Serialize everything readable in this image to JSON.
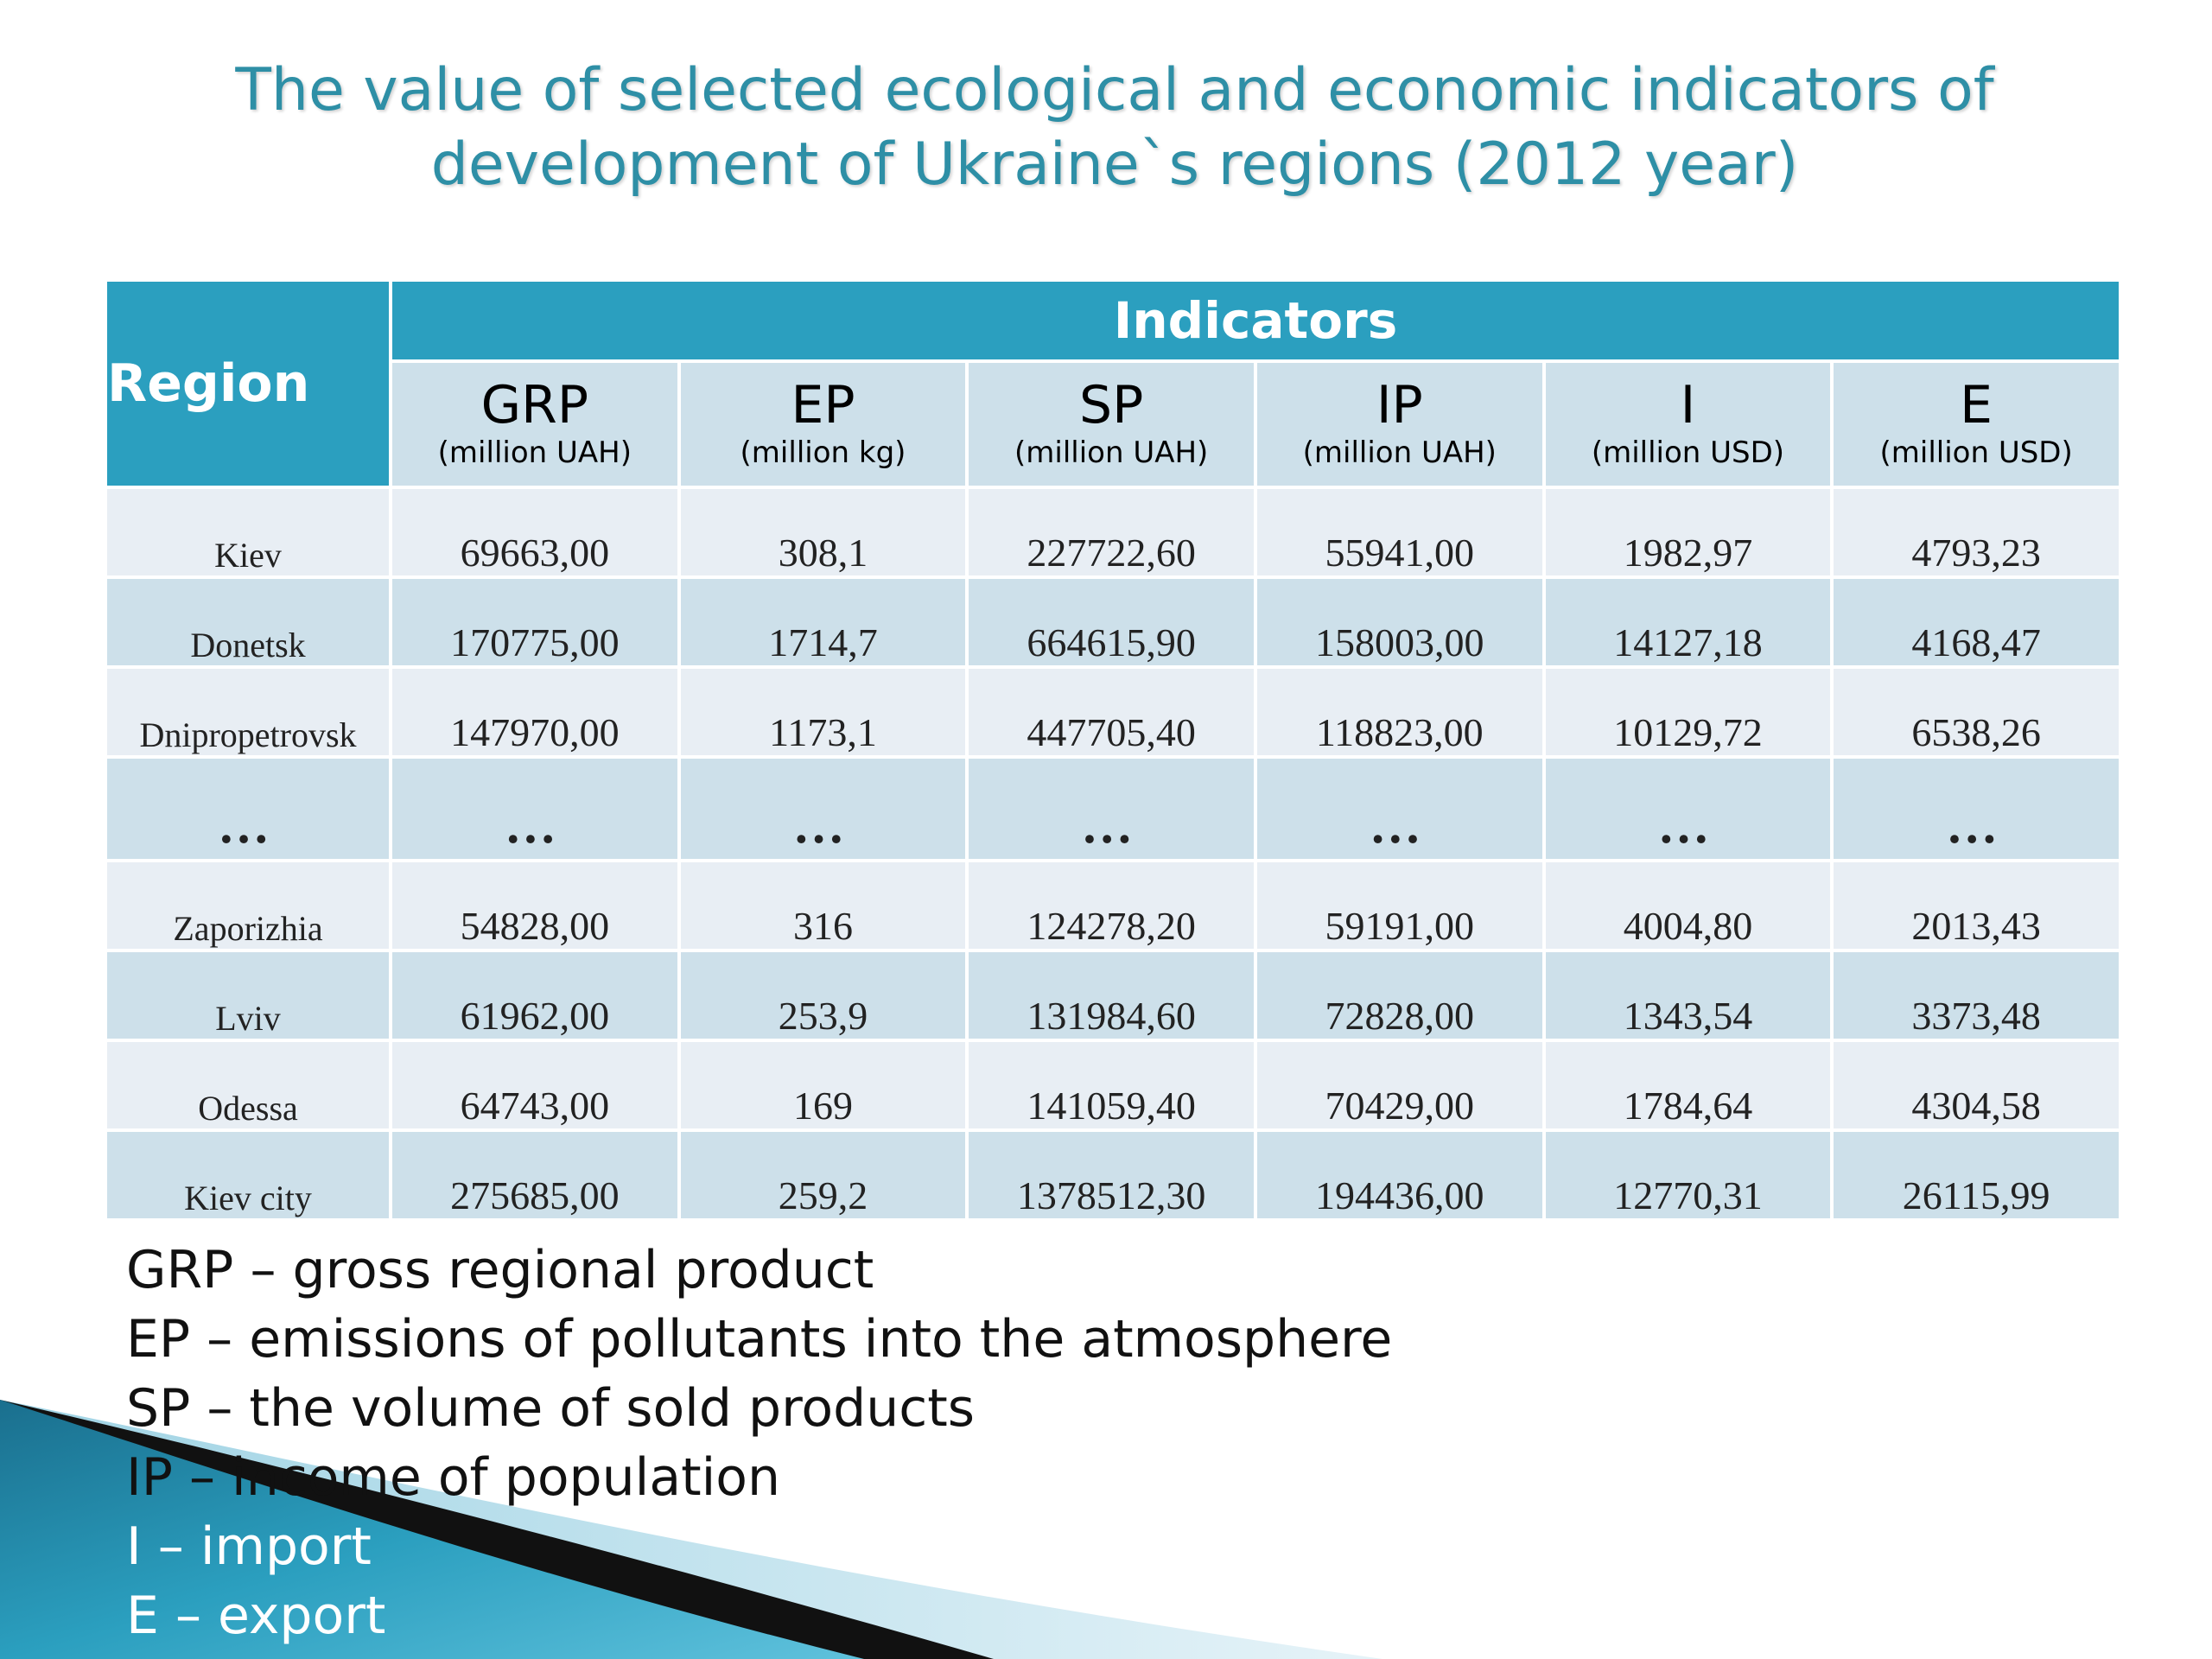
{
  "title": {
    "line1": "The value of selected ecological and economic indicators of",
    "line2": "development of Ukraine`s regions  (2012 year)"
  },
  "table": {
    "region_header": "Region",
    "indicators_header": "Indicators",
    "columns": [
      {
        "abbr": "GRP",
        "unit": "(million  UAH)"
      },
      {
        "abbr": "EP",
        "unit": "(million  kg)"
      },
      {
        "abbr": "SP",
        "unit": "(million  UAH)"
      },
      {
        "abbr": "IP",
        "unit": "(million  UAH)"
      },
      {
        "abbr": "I",
        "unit": "(million  USD)"
      },
      {
        "abbr": "E",
        "unit": "(million  USD)"
      }
    ],
    "rows": [
      {
        "region": "Kiev",
        "values": [
          "69663,00",
          "308,1",
          "227722,60",
          "55941,00",
          "1982,97",
          "4793,23"
        ]
      },
      {
        "region": "Donetsk",
        "values": [
          "170775,00",
          "1714,7",
          "664615,90",
          "158003,00",
          "14127,18",
          "4168,47"
        ]
      },
      {
        "region": "Dnipropetrovsk",
        "values": [
          "147970,00",
          "1173,1",
          "447705,40",
          "118823,00",
          "10129,72",
          "6538,26"
        ]
      },
      {
        "region": "…",
        "values": [
          "…",
          "…",
          "…",
          "…",
          "…",
          "…"
        ]
      },
      {
        "region": "Zaporizhia",
        "values": [
          "54828,00",
          "316",
          "124278,20",
          "59191,00",
          "4004,80",
          "2013,43"
        ]
      },
      {
        "region": "Lviv",
        "values": [
          "61962,00",
          "253,9",
          "131984,60",
          "72828,00",
          "1343,54",
          "3373,48"
        ]
      },
      {
        "region": "Odessa",
        "values": [
          "64743,00",
          "169",
          "141059,40",
          "70429,00",
          "1784,64",
          "4304,58"
        ]
      },
      {
        "region": "Kiev city",
        "values": [
          "275685,00",
          "259,2",
          "1378512,30",
          "194436,00",
          "12770,31",
          "26115,99"
        ]
      }
    ]
  },
  "legend": [
    "GRP – gross regional product",
    "EP – emissions of pollutants into the atmosphere",
    "SP – the volume of sold products",
    "IP – income of population",
    "I – import",
    "E – export"
  ],
  "colors": {
    "title": "#2e8fa6",
    "header_bg": "#2b9fbf",
    "row_light": "#e8eef4",
    "row_dark": "#cde0ea"
  }
}
